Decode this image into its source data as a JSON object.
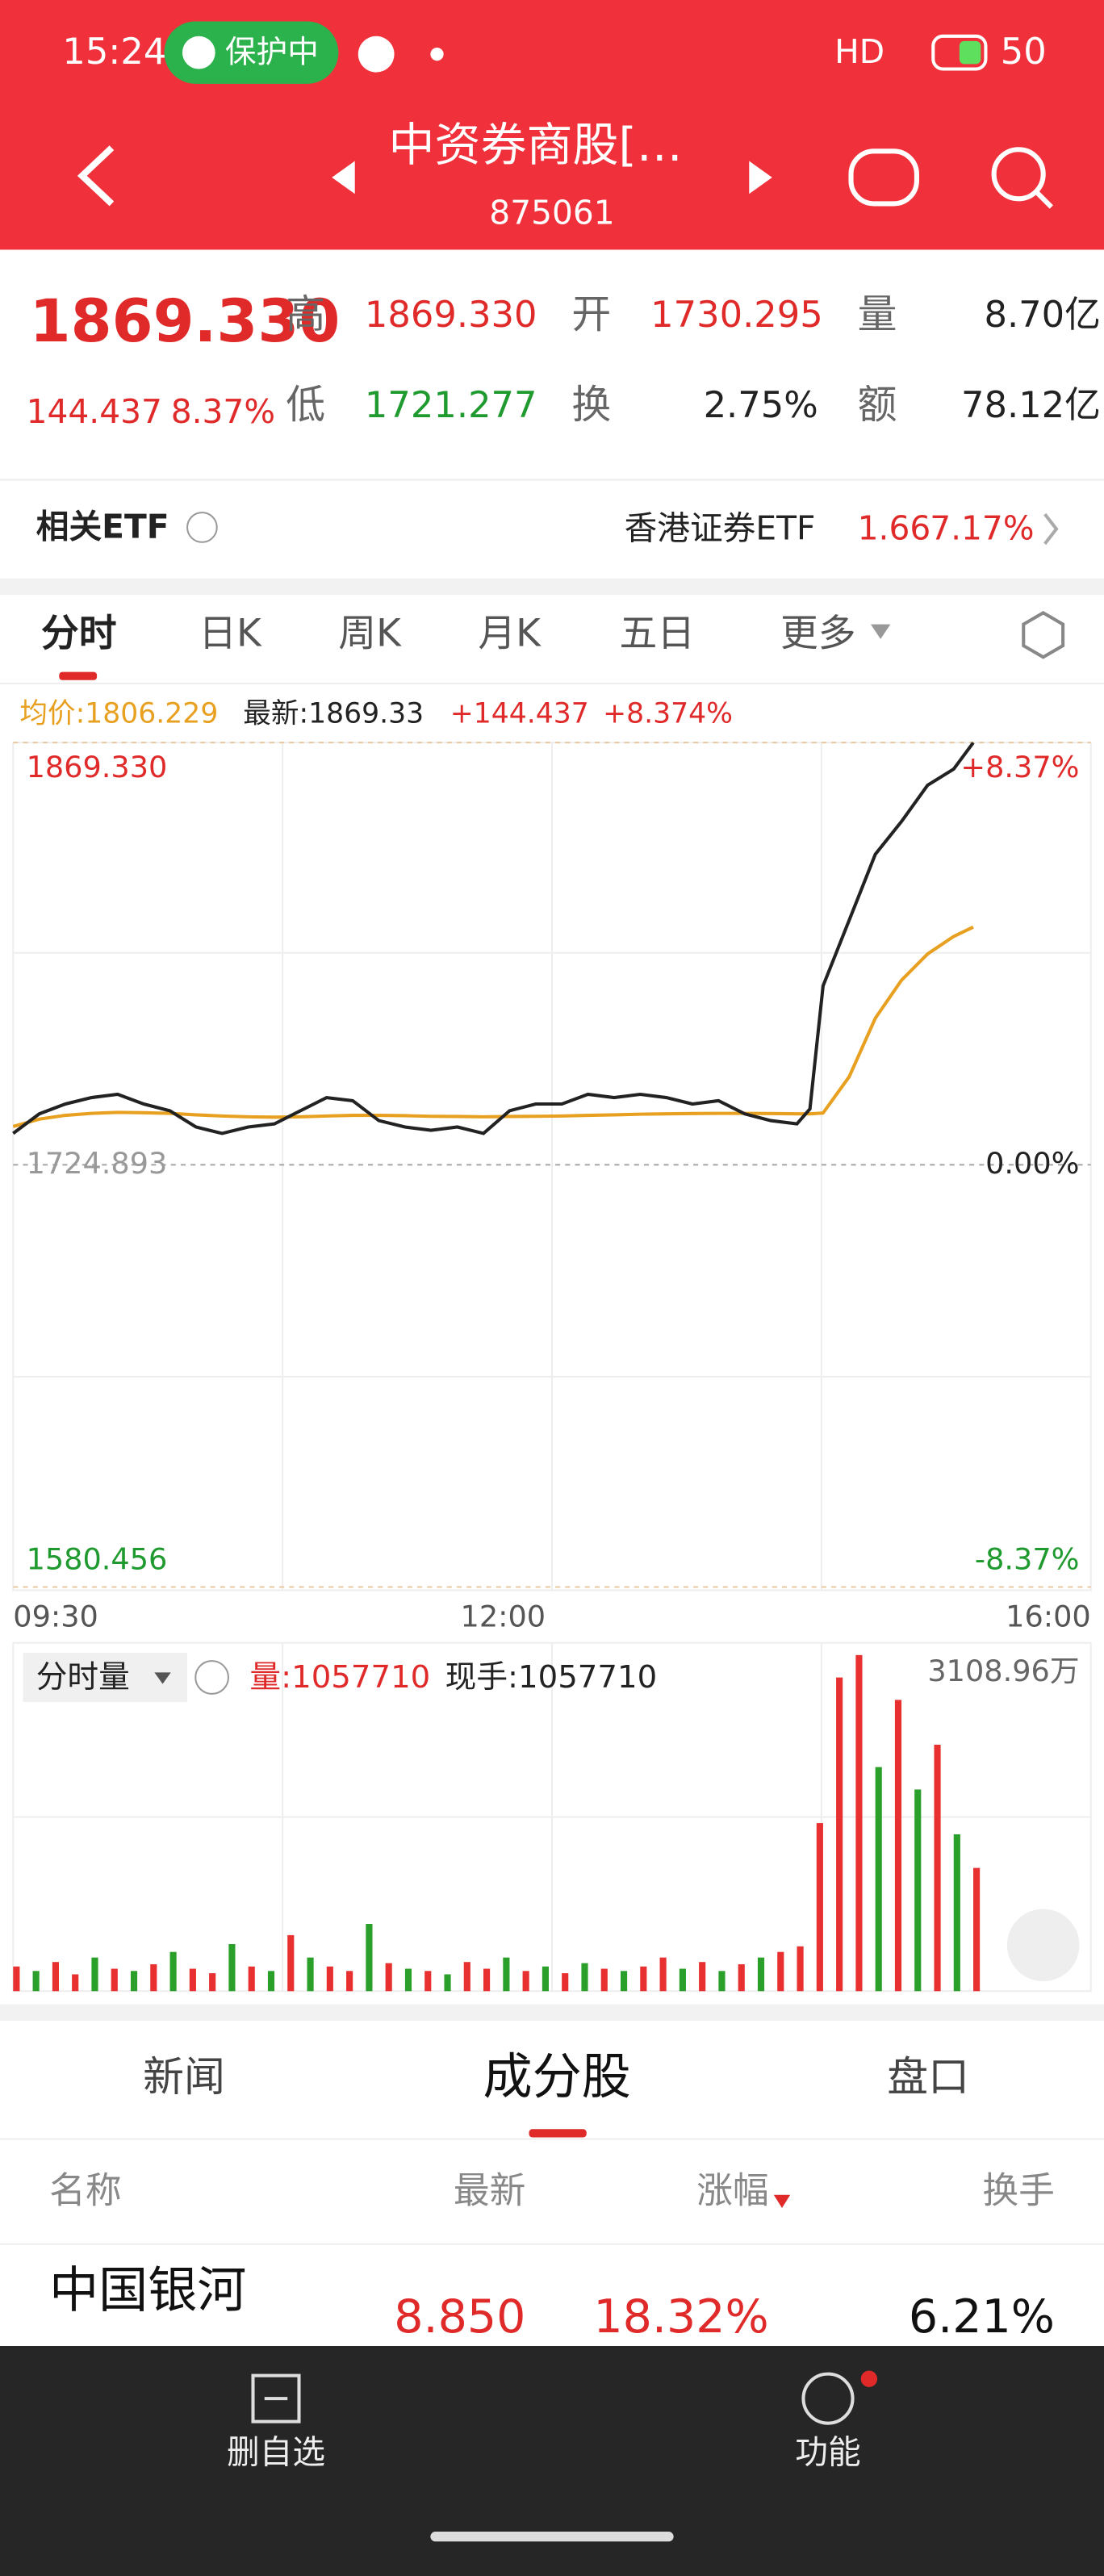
{
  "status_bar": {
    "time": "15:24",
    "badge": "保护中",
    "network": "HD",
    "battery": "50"
  },
  "header": {
    "title": "中资券商股[…",
    "code": "875061"
  },
  "quote": {
    "price": "1869.330",
    "change": "144.437",
    "change_pct": "8.37%",
    "fields": [
      {
        "label": "高",
        "value": "1869.330"
      },
      {
        "label": "开",
        "value": "1730.295"
      },
      {
        "label": "量",
        "value": "8.70亿"
      },
      {
        "label": "低",
        "value": "1721.277"
      },
      {
        "label": "换",
        "value": "2.75%"
      },
      {
        "label": "额",
        "value": "78.12亿"
      }
    ]
  },
  "etf": {
    "label": "相关ETF",
    "name": "香港证券ETF",
    "price": "1.66",
    "pct": "7.17%"
  },
  "tabs": [
    "分时",
    "日K",
    "周K",
    "月K",
    "五日",
    "更多"
  ],
  "chart_info": {
    "avg": "均价:1806.229",
    "latest": "最新:1869.33",
    "change": "+144.437",
    "pct": "+8.374%"
  },
  "volume_info": {
    "label": "分时量",
    "volume": "量:1057710",
    "hand": "现手:1057710"
  },
  "chart_data": [
    {
      "type": "line",
      "x": [
        0,
        8,
        16,
        24,
        32,
        40,
        48,
        56,
        64,
        72,
        80,
        88,
        96,
        104,
        112,
        120,
        128,
        136,
        144,
        152,
        160,
        168,
        176,
        184,
        192,
        200,
        208,
        216,
        224,
        232,
        240,
        244,
        248,
        256,
        264,
        272,
        280,
        288,
        294
      ],
      "series": [
        {
          "color": "#222222",
          "values": [
            1735.6,
            1742.3,
            1745.7,
            1747.9,
            1749.0,
            1745.7,
            1743.4,
            1737.8,
            1735.6,
            1737.8,
            1738.9,
            1743.4,
            1747.9,
            1746.8,
            1740.0,
            1737.8,
            1736.7,
            1737.8,
            1735.6,
            1743.4,
            1745.7,
            1745.7,
            1749.0,
            1747.9,
            1749.0,
            1747.9,
            1745.7,
            1746.8,
            1742.3,
            1740.0,
            1738.9,
            1744.0,
            1786.1,
            1808.6,
            1831.1,
            1842.3,
            1854.7,
            1860.3,
            1869.3
          ]
        },
        {
          "color": "#e8a020",
          "values": [
            1738.0,
            1740.5,
            1741.8,
            1742.5,
            1742.8,
            1742.7,
            1742.5,
            1742.0,
            1741.6,
            1741.3,
            1741.2,
            1741.3,
            1741.6,
            1741.8,
            1741.8,
            1741.7,
            1741.5,
            1741.4,
            1741.3,
            1741.4,
            1741.5,
            1741.6,
            1741.8,
            1742.0,
            1742.2,
            1742.3,
            1742.4,
            1742.5,
            1742.5,
            1742.4,
            1742.3,
            1742.3,
            1742.6,
            1755.0,
            1775.0,
            1788.0,
            1797.0,
            1803.0,
            1806.2
          ]
        }
      ],
      "xlim": [
        0,
        330
      ],
      "xticks": [
        {
          "value": 0,
          "label": "09:30"
        },
        {
          "value": 150,
          "label": "12:00"
        },
        {
          "value": 330,
          "label": "16:00"
        }
      ],
      "ylim": [
        1580.456,
        1869.33
      ],
      "yticks": [
        {
          "value": 1869.33,
          "label": "1869.330"
        },
        {
          "value": 1724.893,
          "label": "1724.893"
        },
        {
          "value": 1580.456,
          "label": "1580.456"
        }
      ],
      "y2lim": [
        -8.37,
        8.37
      ],
      "y2ticks": [
        {
          "value": 8.37,
          "label": "+8.37%"
        },
        {
          "value": 0,
          "label": "0.00%"
        },
        {
          "value": -8.37,
          "label": "-8.37%"
        }
      ]
    },
    {
      "type": "bar",
      "x": [
        0,
        6,
        12,
        18,
        24,
        30,
        36,
        42,
        48,
        54,
        60,
        66,
        72,
        78,
        84,
        90,
        96,
        102,
        108,
        114,
        120,
        126,
        132,
        138,
        144,
        150,
        156,
        162,
        168,
        174,
        180,
        186,
        192,
        198,
        204,
        210,
        216,
        222,
        228,
        234,
        240,
        246,
        252,
        258,
        264,
        270,
        276,
        282,
        288,
        294
      ],
      "values": [
        220,
        180,
        260,
        150,
        300,
        200,
        180,
        240,
        350,
        200,
        160,
        420,
        220,
        180,
        500,
        300,
        220,
        180,
        600,
        250,
        200,
        180,
        150,
        260,
        200,
        300,
        180,
        220,
        160,
        250,
        200,
        180,
        220,
        300,
        200,
        260,
        180,
        240,
        300,
        350,
        400,
        1500,
        2800,
        3000,
        2000,
        2600,
        1800,
        2200,
        1400,
        1100
      ],
      "colors": [
        "#e83030",
        "#2aa02a",
        "#e83030",
        "#e83030",
        "#2aa02a",
        "#e83030",
        "#2aa02a",
        "#e83030",
        "#2aa02a",
        "#e83030",
        "#e83030",
        "#2aa02a",
        "#e83030",
        "#2aa02a",
        "#e83030",
        "#2aa02a",
        "#e83030",
        "#e83030",
        "#2aa02a",
        "#e83030",
        "#2aa02a",
        "#e83030",
        "#2aa02a",
        "#e83030",
        "#e83030",
        "#2aa02a",
        "#e83030",
        "#2aa02a",
        "#e83030",
        "#2aa02a",
        "#e83030",
        "#2aa02a",
        "#e83030",
        "#e83030",
        "#2aa02a",
        "#e83030",
        "#2aa02a",
        "#e83030",
        "#2aa02a",
        "#e83030",
        "#e83030",
        "#e83030",
        "#e83030",
        "#e83030",
        "#2aa02a",
        "#e83030",
        "#2aa02a",
        "#e83030",
        "#2aa02a",
        "#e83030"
      ],
      "xlim": [
        0,
        330
      ],
      "ylim": [
        0,
        3108.96
      ],
      "yticks": [
        {
          "value": 3108.96,
          "label": "3108.96万"
        }
      ]
    }
  ],
  "sub_tabs": [
    "新闻",
    "成分股",
    "盘口"
  ],
  "table": {
    "columns": [
      "名称",
      "最新",
      "涨幅",
      "换手"
    ],
    "rows": [
      [
        "中国银河",
        "8.850",
        "18.32%",
        "6.21%"
      ]
    ]
  },
  "nav": [
    "删自选",
    "功能"
  ]
}
